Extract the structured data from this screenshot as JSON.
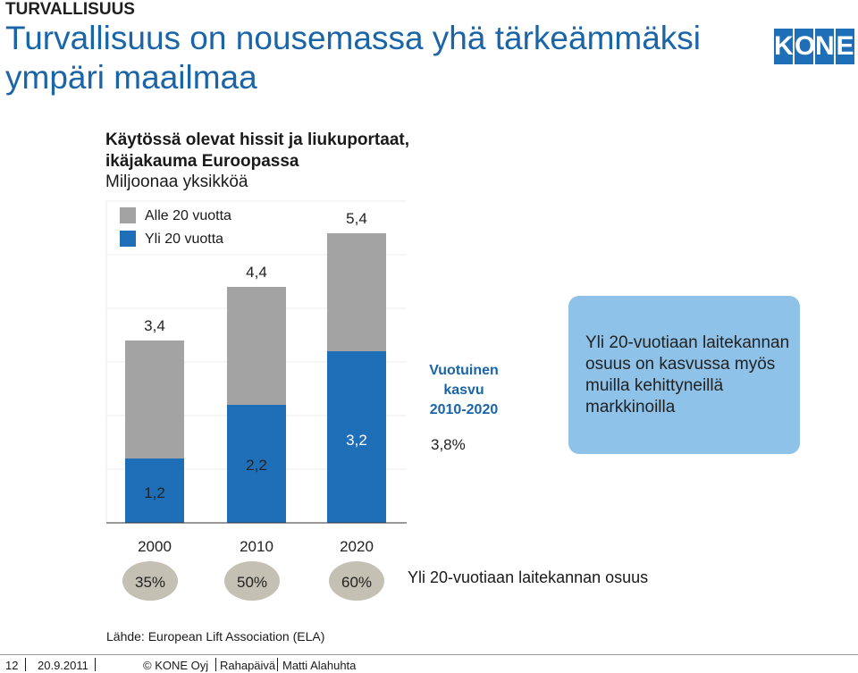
{
  "header": {
    "section": "TURVALLISUUS",
    "title_line1": "Turvallisuus on nousemassa yhä tärkeämmäksi",
    "title_line2": "ympäri maailmaa",
    "logo_letters": [
      "K",
      "O",
      "N",
      "E"
    ]
  },
  "chart_data": {
    "type": "bar",
    "stacked": true,
    "title": [
      "Käytössä olevat hissit ja liukuportaat,",
      "ikäjakauma Euroopassa"
    ],
    "subtitle": "Miljoonaa yksikköä",
    "categories": [
      "2000",
      "2010",
      "2020"
    ],
    "series": [
      {
        "name": "Yli 20 vuotta",
        "values": [
          1.2,
          2.2,
          3.2
        ],
        "labels": [
          "1,2",
          "2,2",
          "3,2"
        ],
        "color": "#1f6fb8"
      },
      {
        "name": "Alle 20 vuotta",
        "values": [
          2.2,
          2.2,
          2.2
        ],
        "color": "#a3a3a3"
      }
    ],
    "totals": [
      3.4,
      4.4,
      5.4
    ],
    "total_labels": [
      "3,4",
      "4,4",
      "5,4"
    ],
    "ylim": [
      0,
      6
    ],
    "legend_position": "top-left",
    "share_labels": [
      "35%",
      "50%",
      "60%"
    ],
    "share_caption": "Yli 20-vuotiaan laitekannan osuus"
  },
  "growth": {
    "lines": [
      "Vuotuinen",
      "kasvu",
      "2010-2020"
    ],
    "value": "3,8%"
  },
  "callout": {
    "text": "Yli 20-vuotiaan laitekannan osuus on kasvussa myös muilla kehittyneillä markkinoilla"
  },
  "source": "Lähde: European Lift Association (ELA)",
  "footer": {
    "page": "12",
    "date": "20.9.2011",
    "company": "© KONE Oyj",
    "event": "Rahapäivä",
    "presenter": "Matti Alahuhta"
  }
}
